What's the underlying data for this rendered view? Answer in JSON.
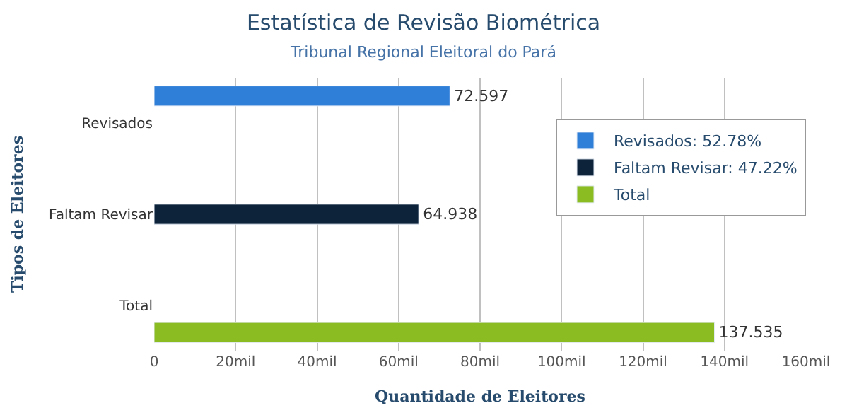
{
  "chart_data": {
    "type": "bar",
    "orientation": "horizontal",
    "title": "Estatística de Revisão Biométrica",
    "subtitle": "Tribunal Regional Eleitoral do Pará",
    "xlabel": "Quantidade de Eleitores",
    "ylabel": "Tipos de Eleitores",
    "categories": [
      "Revisados",
      "Faltam Revisar",
      "Total"
    ],
    "series": [
      {
        "name": "Revisados: 52.78%",
        "color": "#2f7ed8",
        "values": [
          72.597,
          null,
          null
        ]
      },
      {
        "name": "Faltam Revisar: 47.22%",
        "color": "#0d233a",
        "values": [
          null,
          64.938,
          null
        ]
      },
      {
        "name": "Total",
        "color": "#8bbc21",
        "values": [
          null,
          null,
          137.535
        ]
      }
    ],
    "data_labels": true,
    "xlim": [
      0,
      160
    ],
    "xticks": [
      0,
      {
        "value": 20,
        "label": "20mil"
      },
      {
        "value": 40,
        "label": "40mil"
      },
      {
        "value": 60,
        "label": "60mil"
      },
      {
        "value": 80,
        "label": "80mil"
      },
      {
        "value": 100,
        "label": "100mil"
      },
      {
        "value": 120,
        "label": "120mil"
      },
      {
        "value": 140,
        "label": "140mil"
      },
      {
        "value": 160,
        "label": "160mil"
      }
    ],
    "grid": "x",
    "legend": "top right"
  }
}
